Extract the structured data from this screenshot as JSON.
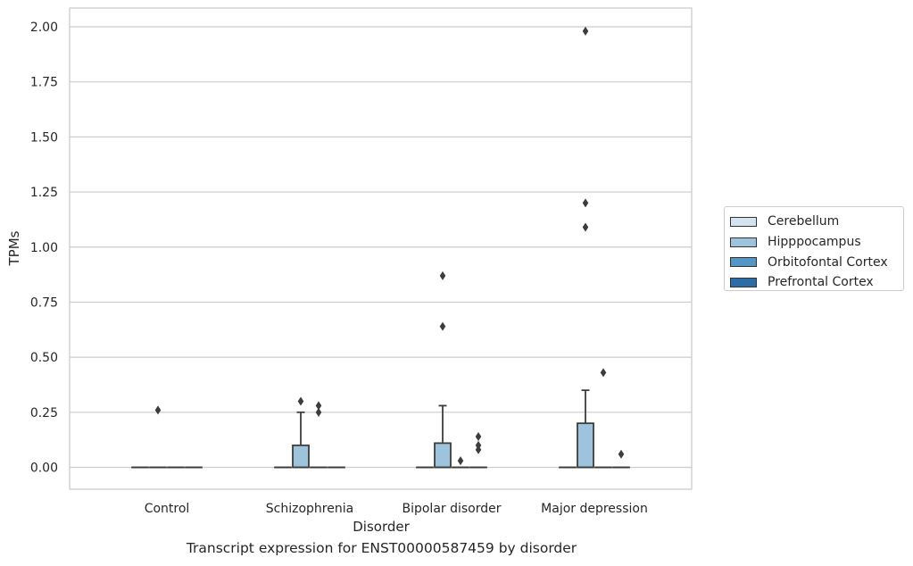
{
  "chart_data": {
    "type": "box",
    "caption": "Transcript expression for ENST00000587459 by disorder",
    "xlabel": "Disorder",
    "ylabel": "TPMs",
    "ylim": [
      -0.1,
      2.08
    ],
    "yticks": [
      "0.00",
      "0.25",
      "0.50",
      "0.75",
      "1.00",
      "1.25",
      "1.50",
      "1.75",
      "2.00"
    ],
    "ytick_values": [
      0,
      0.25,
      0.5,
      0.75,
      1.0,
      1.25,
      1.5,
      1.75,
      2.0
    ],
    "grid": "horizontal",
    "legend_position": "right",
    "categories": [
      "Control",
      "Schizophrenia",
      "Bipolar disorder",
      "Major depression"
    ],
    "series": [
      {
        "name": "Cerebellum",
        "color": "#d4e3f0",
        "boxes": [
          {
            "q1": 0,
            "median": 0,
            "q3": 0,
            "whisker_low": 0,
            "whisker_high": 0,
            "outliers": []
          },
          {
            "q1": 0,
            "median": 0,
            "q3": 0,
            "whisker_low": 0,
            "whisker_high": 0,
            "outliers": []
          },
          {
            "q1": 0,
            "median": 0,
            "q3": 0,
            "whisker_low": 0,
            "whisker_high": 0,
            "outliers": []
          },
          {
            "q1": 0,
            "median": 0,
            "q3": 0,
            "whisker_low": 0,
            "whisker_high": 0,
            "outliers": []
          }
        ]
      },
      {
        "name": "Hipppocampus",
        "color": "#9dc4dc",
        "boxes": [
          {
            "q1": 0,
            "median": 0,
            "q3": 0,
            "whisker_low": 0,
            "whisker_high": 0,
            "outliers": [
              0.26
            ]
          },
          {
            "q1": 0,
            "median": 0,
            "q3": 0.1,
            "whisker_low": 0,
            "whisker_high": 0.25,
            "outliers": [
              0.3
            ]
          },
          {
            "q1": 0,
            "median": 0,
            "q3": 0.11,
            "whisker_low": 0,
            "whisker_high": 0.28,
            "outliers": [
              0.64,
              0.87
            ]
          },
          {
            "q1": 0,
            "median": 0,
            "q3": 0.2,
            "whisker_low": 0,
            "whisker_high": 0.35,
            "outliers": [
              1.09,
              1.2,
              1.98
            ]
          }
        ]
      },
      {
        "name": "Orbitofontal Cortex",
        "color": "#5497c6",
        "boxes": [
          {
            "q1": 0,
            "median": 0,
            "q3": 0,
            "whisker_low": 0,
            "whisker_high": 0,
            "outliers": []
          },
          {
            "q1": 0,
            "median": 0,
            "q3": 0,
            "whisker_low": 0,
            "whisker_high": 0,
            "outliers": [
              0.25,
              0.28
            ]
          },
          {
            "q1": 0,
            "median": 0,
            "q3": 0,
            "whisker_low": 0,
            "whisker_high": 0,
            "outliers": [
              0.03
            ]
          },
          {
            "q1": 0,
            "median": 0,
            "q3": 0,
            "whisker_low": 0,
            "whisker_high": 0,
            "outliers": [
              0.43
            ]
          }
        ]
      },
      {
        "name": "Prefrontal Cortex",
        "color": "#2c6da8",
        "boxes": [
          {
            "q1": 0,
            "median": 0,
            "q3": 0,
            "whisker_low": 0,
            "whisker_high": 0,
            "outliers": []
          },
          {
            "q1": 0,
            "median": 0,
            "q3": 0,
            "whisker_low": 0,
            "whisker_high": 0,
            "outliers": []
          },
          {
            "q1": 0,
            "median": 0,
            "q3": 0,
            "whisker_low": 0,
            "whisker_high": 0,
            "outliers": [
              0.08,
              0.1,
              0.14
            ]
          },
          {
            "q1": 0,
            "median": 0,
            "q3": 0,
            "whisker_low": 0,
            "whisker_high": 0,
            "outliers": [
              0.06
            ]
          }
        ]
      }
    ]
  }
}
